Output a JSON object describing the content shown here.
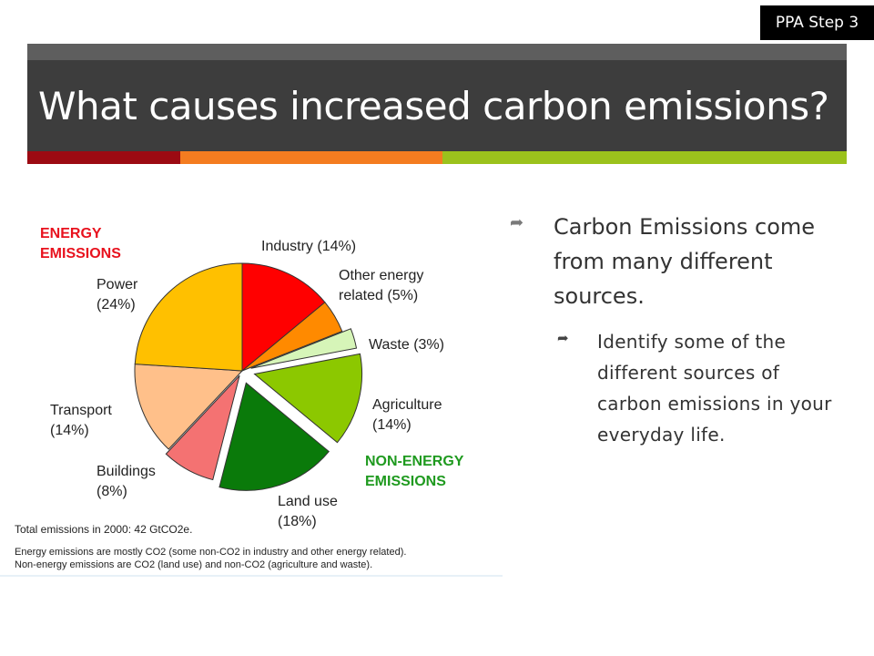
{
  "badge": "PPA Step 3",
  "slide_title": "What causes increased carbon  emissions?",
  "colors": {
    "title_bg": "#3d3d3d",
    "accent1": "#9c0a12",
    "accent2": "#f47c20",
    "accent3": "#9bc21c"
  },
  "bullets": {
    "main": "Carbon Emissions come from many different sources.",
    "sub": "Identify some of the different sources of carbon emissions in your everyday life.",
    "icon": "arrow-bullet-icon"
  },
  "chart_data": {
    "type": "pie",
    "groups": [
      {
        "name": "ENERGY EMISSIONS",
        "color": "#e8121e"
      },
      {
        "name": "NON-ENERGY EMISSIONS",
        "color": "#1f9a1f"
      }
    ],
    "slices": [
      {
        "label": "Industry",
        "pct_text": "(14%)",
        "value": 14,
        "color": "#ff0000",
        "group": 0
      },
      {
        "label": "Other energy related",
        "pct_text": "(5%)",
        "value": 5,
        "color": "#ff8a00",
        "group": 0
      },
      {
        "label": "Waste",
        "pct_text": "(3%)",
        "value": 3,
        "color": "#d6f5b8",
        "group": 1
      },
      {
        "label": "Agriculture",
        "pct_text": "(14%)",
        "value": 14,
        "color": "#8cc800",
        "group": 1
      },
      {
        "label": "Land use",
        "pct_text": "(18%)",
        "value": 18,
        "color": "#0a7a0a",
        "group": 1
      },
      {
        "label": "Buildings",
        "pct_text": "(8%)",
        "value": 8,
        "color": "#f47272",
        "group": 0
      },
      {
        "label": "Transport",
        "pct_text": "(14%)",
        "value": 14,
        "color": "#ffc08a",
        "group": 0
      },
      {
        "label": "Power",
        "pct_text": "(24%)",
        "value": 24,
        "color": "#ffc000",
        "group": 0
      }
    ],
    "notes": [
      "Total emissions in 2000: 42 GtCO2e.",
      "Energy emissions are mostly CO2 (some non-CO2 in industry and other energy related).",
      "Non-energy emissions are CO2 (land use) and non-CO2 (agriculture and waste)."
    ]
  }
}
